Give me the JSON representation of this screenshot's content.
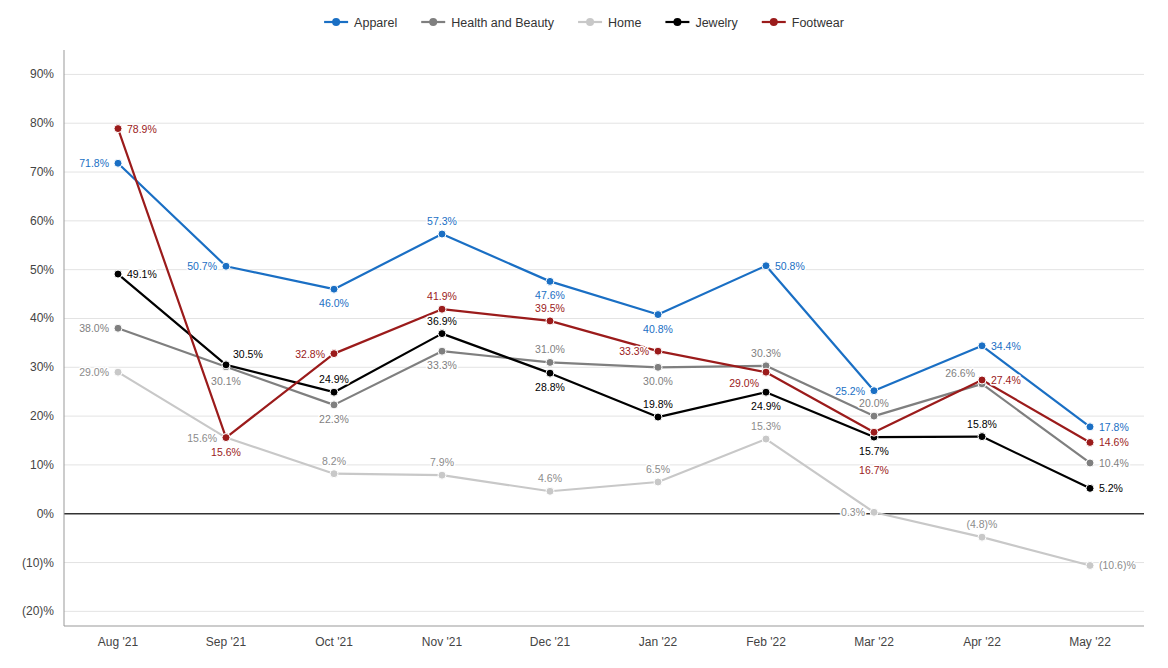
{
  "chart_data": {
    "type": "line",
    "categories": [
      "Aug '21",
      "Sep '21",
      "Oct '21",
      "Nov '21",
      "Dec '21",
      "Jan '22",
      "Feb '22",
      "Mar '22",
      "Apr '22",
      "May '22"
    ],
    "series": [
      {
        "name": "Apparel",
        "color": "#1a6fc4",
        "values": [
          71.8,
          50.7,
          46.0,
          57.3,
          47.6,
          40.8,
          50.8,
          25.2,
          34.4,
          17.8
        ],
        "value_labels": [
          "71.8%",
          "50.7%",
          "46.0%",
          "57.3%",
          "47.6%",
          "40.8%",
          "50.8%",
          "25.2%",
          "34.4%",
          "17.8%"
        ]
      },
      {
        "name": "Health and Beauty",
        "color": "#7f7f7f",
        "values": [
          38.0,
          30.1,
          22.3,
          33.3,
          31.0,
          30.0,
          30.3,
          20.0,
          26.6,
          10.4
        ],
        "value_labels": [
          "38.0%",
          "30.1%",
          "22.3%",
          "33.3%",
          "31.0%",
          "30.0%",
          "30.3%",
          "20.0%",
          "26.6%",
          "10.4%"
        ]
      },
      {
        "name": "Home",
        "color": "#c8c8c8",
        "values": [
          29.0,
          15.6,
          8.2,
          7.9,
          4.6,
          6.5,
          15.3,
          0.3,
          -4.8,
          -10.6
        ],
        "value_labels": [
          "29.0%",
          "15.6%",
          "8.2%",
          "7.9%",
          "4.6%",
          "6.5%",
          "15.3%",
          "0.3%",
          "(4.8)%",
          "(10.6)%"
        ]
      },
      {
        "name": "Jewelry",
        "color": "#000000",
        "values": [
          49.1,
          30.5,
          24.9,
          36.9,
          28.8,
          19.8,
          24.9,
          15.7,
          15.8,
          5.2
        ],
        "value_labels": [
          "49.1%",
          "30.5%",
          "24.9%",
          "36.9%",
          "28.8%",
          "19.8%",
          "24.9%",
          "15.7%",
          "15.8%",
          "5.2%"
        ]
      },
      {
        "name": "Footwear",
        "color": "#9b1b1b",
        "values": [
          78.9,
          15.6,
          32.8,
          41.9,
          39.5,
          33.3,
          29.0,
          16.7,
          27.4,
          14.6
        ],
        "value_labels": [
          "78.9%",
          "15.6%",
          "32.8%",
          "41.9%",
          "39.5%",
          "33.3%",
          "29.0%",
          "16.7%",
          "27.4%",
          "14.6%"
        ]
      }
    ],
    "ylim": [
      -23,
      95
    ],
    "yticks": [
      {
        "value": -20,
        "label": "(20)%"
      },
      {
        "value": -10,
        "label": "(10)%"
      },
      {
        "value": 0,
        "label": "0%"
      },
      {
        "value": 10,
        "label": "10%"
      },
      {
        "value": 20,
        "label": "20%"
      },
      {
        "value": 30,
        "label": "30%"
      },
      {
        "value": 40,
        "label": "40%"
      },
      {
        "value": 50,
        "label": "50%"
      },
      {
        "value": 60,
        "label": "60%"
      },
      {
        "value": 70,
        "label": "70%"
      },
      {
        "value": 80,
        "label": "80%"
      },
      {
        "value": 90,
        "label": "90%"
      }
    ],
    "grid": true,
    "legend": "top",
    "data_labels": true,
    "marker": "circle"
  }
}
